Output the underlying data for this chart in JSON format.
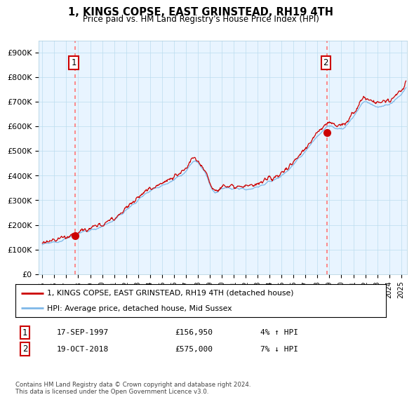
{
  "title": "1, KINGS COPSE, EAST GRINSTEAD, RH19 4TH",
  "subtitle": "Price paid vs. HM Land Registry's House Price Index (HPI)",
  "ylabel_ticks": [
    "£0",
    "£100K",
    "£200K",
    "£300K",
    "£400K",
    "£500K",
    "£600K",
    "£700K",
    "£800K",
    "£900K"
  ],
  "ytick_values": [
    0,
    100000,
    200000,
    300000,
    400000,
    500000,
    600000,
    700000,
    800000,
    900000
  ],
  "ylim": [
    0,
    950000
  ],
  "xlim_left": 1994.7,
  "xlim_right": 2025.5,
  "sale1_date": 1997.72,
  "sale1_price": 156950,
  "sale2_date": 2018.8,
  "sale2_price": 575000,
  "legend_line1": "1, KINGS COPSE, EAST GRINSTEAD, RH19 4TH (detached house)",
  "legend_line2": "HPI: Average price, detached house, Mid Sussex",
  "table_row1_date": "17-SEP-1997",
  "table_row1_price": "£156,950",
  "table_row1_hpi": "4% ↑ HPI",
  "table_row2_date": "19-OCT-2018",
  "table_row2_price": "£575,000",
  "table_row2_hpi": "7% ↓ HPI",
  "footer": "Contains HM Land Registry data © Crown copyright and database right 2024.\nThis data is licensed under the Open Government Licence v3.0.",
  "hpi_color": "#7EB8E8",
  "price_color": "#CC0000",
  "vline_color": "#FF7777",
  "chart_bg": "#E8F4FF",
  "grid_color": "#BBDDEE"
}
